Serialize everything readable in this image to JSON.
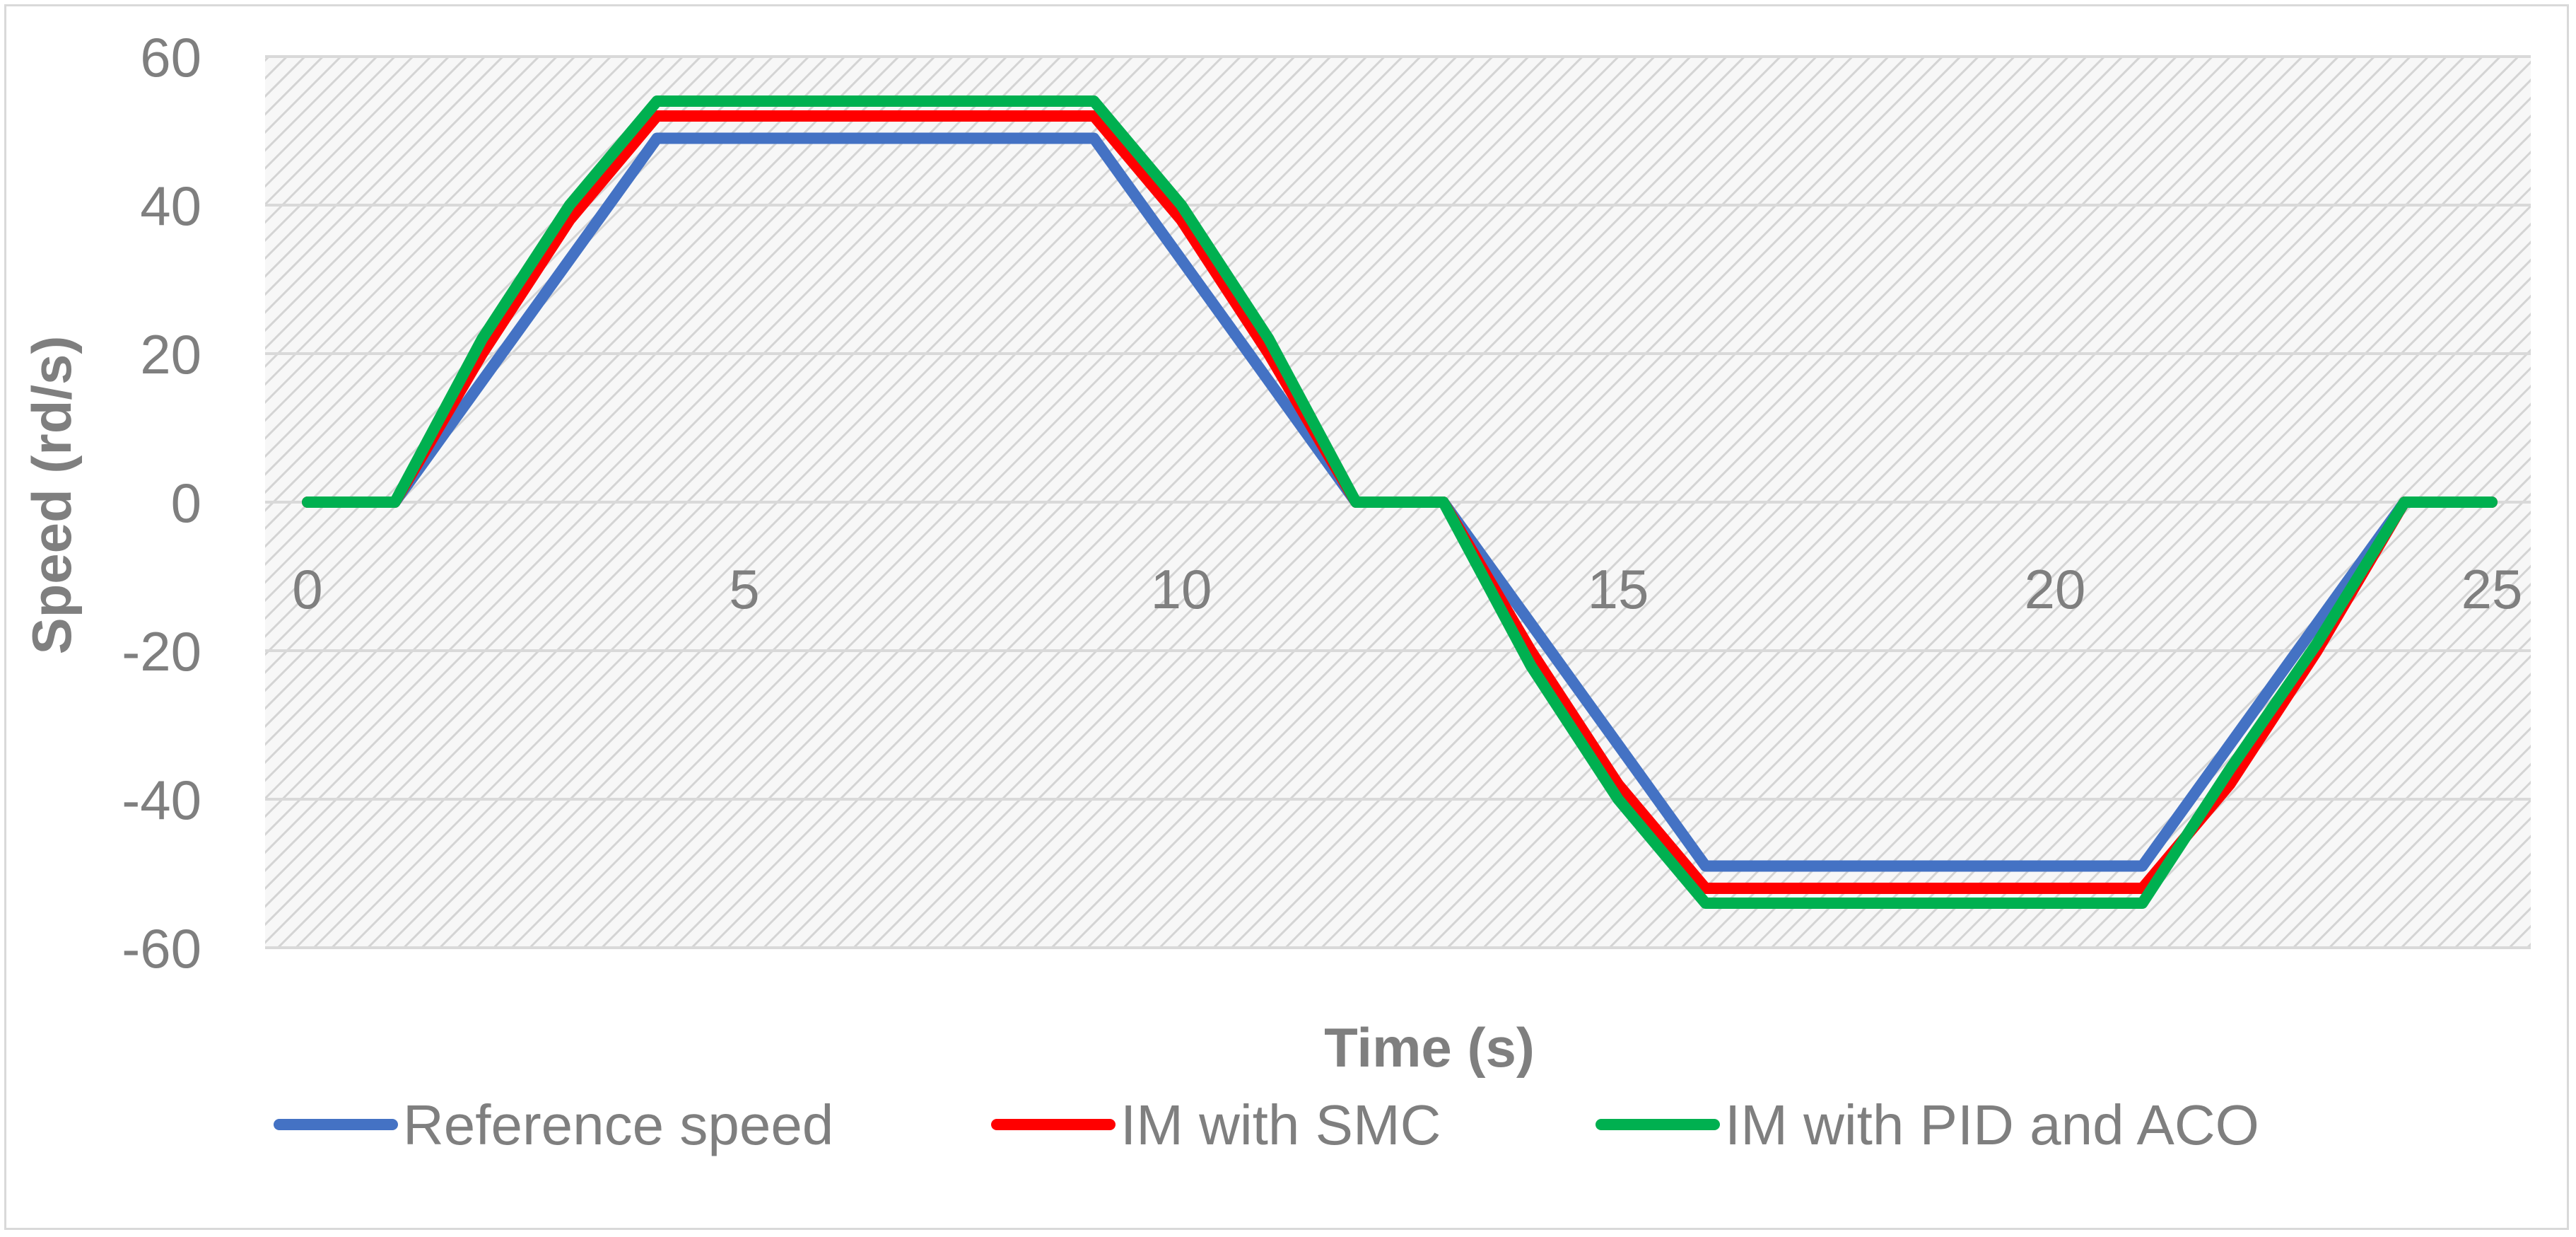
{
  "chart_data": {
    "type": "line",
    "title": "",
    "xlabel": "Time (s)",
    "ylabel": "Speed (rd/s)",
    "xlim": [
      0,
      25
    ],
    "ylim": [
      -60,
      60
    ],
    "x_ticks": [
      "0",
      "5",
      "10",
      "15",
      "20",
      "25"
    ],
    "y_ticks": [
      "60",
      "40",
      "20",
      "0",
      "-20",
      "-40",
      "-60"
    ],
    "grid": true,
    "legend_position": "bottom",
    "series": [
      {
        "name": "Reference speed",
        "color": "#4472c4",
        "x": [
          0,
          1,
          4,
          9,
          12,
          13,
          16,
          21,
          24,
          25
        ],
        "y": [
          0,
          0,
          49,
          49,
          0,
          0,
          -49,
          -49,
          0,
          0
        ]
      },
      {
        "name": "IM with SMC",
        "color": "#ff0000",
        "x": [
          0,
          1,
          2,
          3,
          4,
          9,
          10,
          11,
          12,
          13,
          14,
          15,
          16,
          21,
          22,
          23,
          24,
          25
        ],
        "y": [
          0,
          0,
          20,
          38,
          52,
          52,
          38,
          20,
          0,
          0,
          -20,
          -38,
          -52,
          -52,
          -38,
          -20,
          0,
          0
        ]
      },
      {
        "name": "IM with PID and ACO",
        "color": "#00b050",
        "x": [
          0,
          1,
          2,
          3,
          4,
          9,
          10,
          11,
          12,
          13,
          14,
          15,
          16,
          21,
          22,
          23,
          24,
          25
        ],
        "y": [
          0,
          0,
          22,
          40,
          54,
          54,
          40,
          22,
          0,
          0,
          -22,
          -40,
          -54,
          -54,
          -36,
          -19,
          0,
          0
        ]
      }
    ]
  }
}
